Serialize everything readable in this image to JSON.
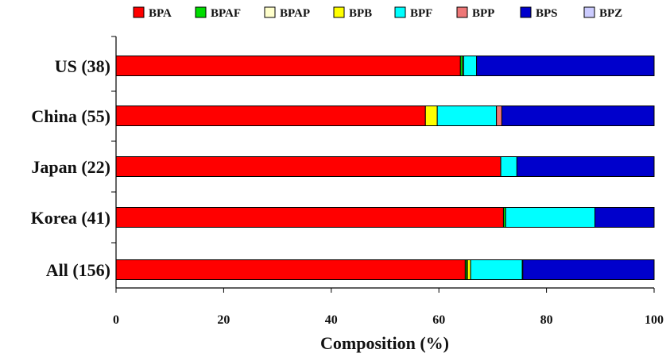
{
  "chart_data": {
    "type": "bar",
    "orientation": "horizontal",
    "stacked": true,
    "categories": [
      "US (38)",
      "China (55)",
      "Japan (22)",
      "Korea (41)",
      "All (156)"
    ],
    "series": [
      {
        "name": "BPA",
        "color": "#ff0000",
        "values": [
          64.0,
          57.5,
          71.5,
          72.0,
          64.9
        ]
      },
      {
        "name": "BPAF",
        "color": "#00dd00",
        "values": [
          0.4,
          0.0,
          0.0,
          0.4,
          0.3
        ]
      },
      {
        "name": "BPAP",
        "color": "#ffffcc",
        "values": [
          0.2,
          0.0,
          0.0,
          0.0,
          0.1
        ]
      },
      {
        "name": "BPB",
        "color": "#ffff00",
        "values": [
          0.0,
          2.2,
          0.0,
          0.0,
          0.6
        ]
      },
      {
        "name": "BPF",
        "color": "#00ffff",
        "values": [
          2.4,
          11.0,
          3.0,
          16.6,
          9.6
        ]
      },
      {
        "name": "BPP",
        "color": "#ee7777",
        "values": [
          0.0,
          1.0,
          0.0,
          0.0,
          0.1
        ]
      },
      {
        "name": "BPS",
        "color": "#0000cc",
        "values": [
          33.0,
          28.3,
          25.5,
          11.0,
          24.4
        ]
      },
      {
        "name": "BPZ",
        "color": "#ccccff",
        "values": [
          0.0,
          0.0,
          0.0,
          0.0,
          0.0
        ]
      }
    ],
    "xlabel": "Composition (%)",
    "ylabel": "",
    "xlim": [
      0,
      100
    ],
    "xticks": [
      0,
      20,
      40,
      60,
      80,
      100
    ],
    "tick_labels": [
      "0",
      "20",
      "40",
      "60",
      "80",
      "100"
    ],
    "legend_position": "top",
    "grid": false
  }
}
